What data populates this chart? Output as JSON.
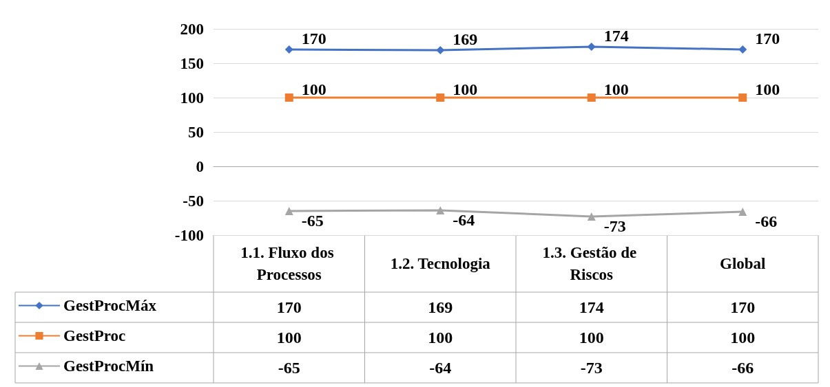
{
  "chart_data": {
    "type": "line",
    "categories": [
      "1.1. Fluxo dos Processos",
      "1.2. Tecnologia",
      "1.3. Gestão de Riscos",
      "Global"
    ],
    "series": [
      {
        "name": "GestProcMáx",
        "color": "#4472c4",
        "marker": "diamond",
        "values": [
          170,
          169,
          174,
          170
        ],
        "value_labels": [
          "170",
          "169",
          "174",
          "170"
        ]
      },
      {
        "name": "GestProc",
        "color": "#ed7d31",
        "marker": "square",
        "values": [
          100,
          100,
          100,
          100
        ],
        "value_labels": [
          "100",
          "100",
          "100",
          "100"
        ]
      },
      {
        "name": "GestProcMín",
        "color": "#a5a5a5",
        "marker": "triangle",
        "values": [
          -65,
          -64,
          -73,
          -66
        ],
        "value_labels": [
          "-65",
          "-64",
          "-73",
          "-66"
        ]
      }
    ],
    "ylim": [
      -100,
      200
    ],
    "yticks": [
      -100,
      -50,
      0,
      50,
      100,
      150,
      200
    ],
    "grid": "y",
    "legend": "bottom left",
    "data_labels": true
  }
}
